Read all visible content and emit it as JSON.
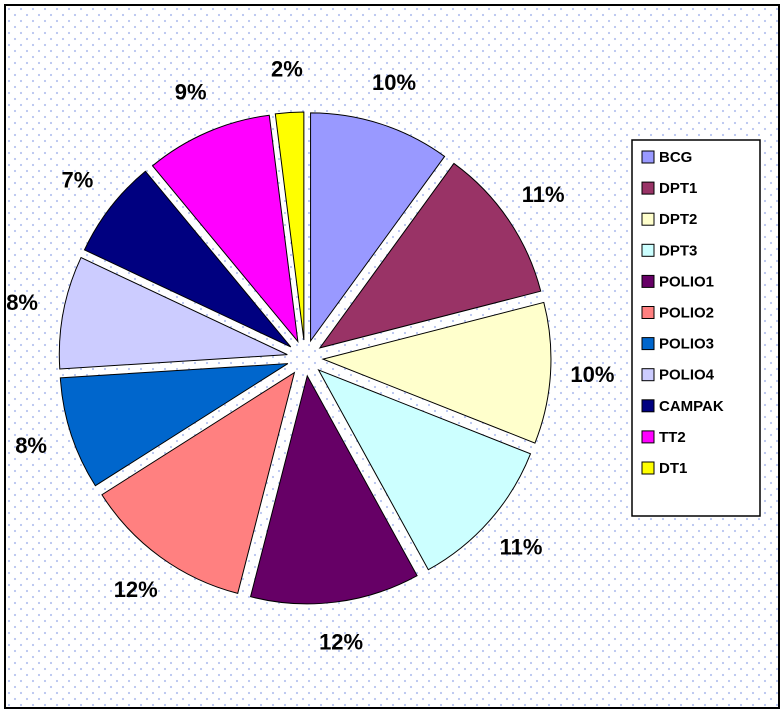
{
  "chart_data": {
    "type": "pie",
    "categories": [
      "BCG",
      "DPT1",
      "DPT2",
      "DPT3",
      "POLIO1",
      "POLIO2",
      "POLIO3",
      "POLIO4",
      "CAMPAK",
      "TT2",
      "DT1"
    ],
    "values": [
      10,
      11,
      10,
      11,
      12,
      12,
      8,
      8,
      7,
      9,
      2
    ],
    "value_labels": [
      "10%",
      "11%",
      "10%",
      "11%",
      "12%",
      "12%",
      "8%",
      "8%",
      "7%",
      "9%",
      "2%"
    ],
    "colors": [
      "#9999ff",
      "#993366",
      "#ffffcc",
      "#ccffff",
      "#660066",
      "#ff8080",
      "#0066cc",
      "#ccccff",
      "#000080",
      "#ff00ff",
      "#ffff00"
    ],
    "legend": "right"
  }
}
